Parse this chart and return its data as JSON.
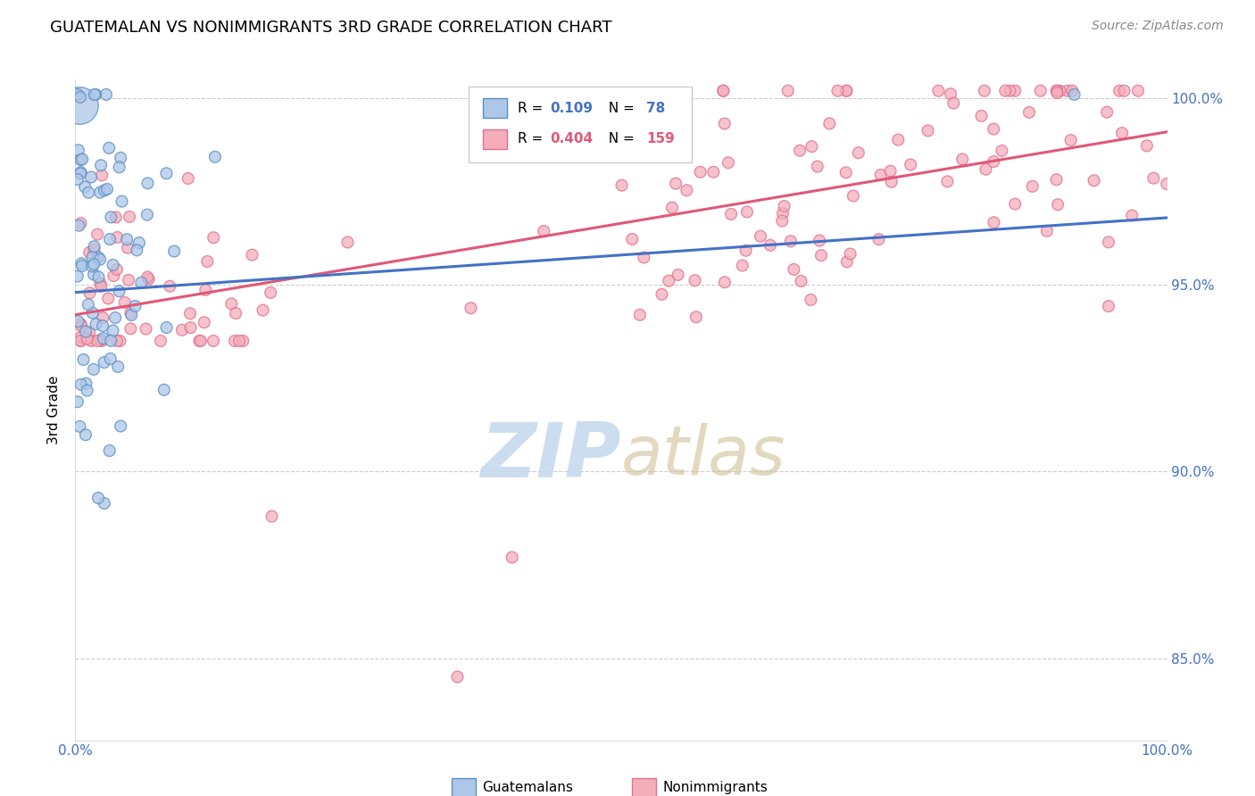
{
  "title": "GUATEMALAN VS NONIMMIGRANTS 3RD GRADE CORRELATION CHART",
  "source": "Source: ZipAtlas.com",
  "ylabel": "3rd Grade",
  "xmin": 0.0,
  "xmax": 1.0,
  "ymin": 0.828,
  "ymax": 1.005,
  "yticks": [
    0.85,
    0.9,
    0.95,
    1.0
  ],
  "ytick_labels": [
    "85.0%",
    "90.0%",
    "95.0%",
    "100.0%"
  ],
  "xticks": [
    0.0,
    0.1,
    0.2,
    0.3,
    0.4,
    0.5,
    0.6,
    0.7,
    0.8,
    0.9,
    1.0
  ],
  "xtick_labels": [
    "0.0%",
    "",
    "",
    "",
    "",
    "",
    "",
    "",
    "",
    "",
    "100.0%"
  ],
  "blue_R": 0.109,
  "blue_N": 78,
  "pink_R": 0.404,
  "pink_N": 159,
  "blue_color": "#AEC6E8",
  "pink_color": "#F4AEBB",
  "blue_edge_color": "#5A8FC3",
  "pink_edge_color": "#E07090",
  "blue_line_color": "#4472C4",
  "pink_line_color": "#E05878",
  "watermark_zip_color": "#C5D8EE",
  "watermark_atlas_color": "#D4C5A0",
  "legend_label_blue": "Guatemalans",
  "legend_label_pink": "Nonimmigrants",
  "tick_color": "#4472C4",
  "grid_color": "#CCCCCC",
  "seed": 12345,
  "blue_trend_y0": 0.948,
  "blue_trend_y1": 0.968,
  "pink_trend_y0": 0.942,
  "pink_trend_y1": 0.991
}
